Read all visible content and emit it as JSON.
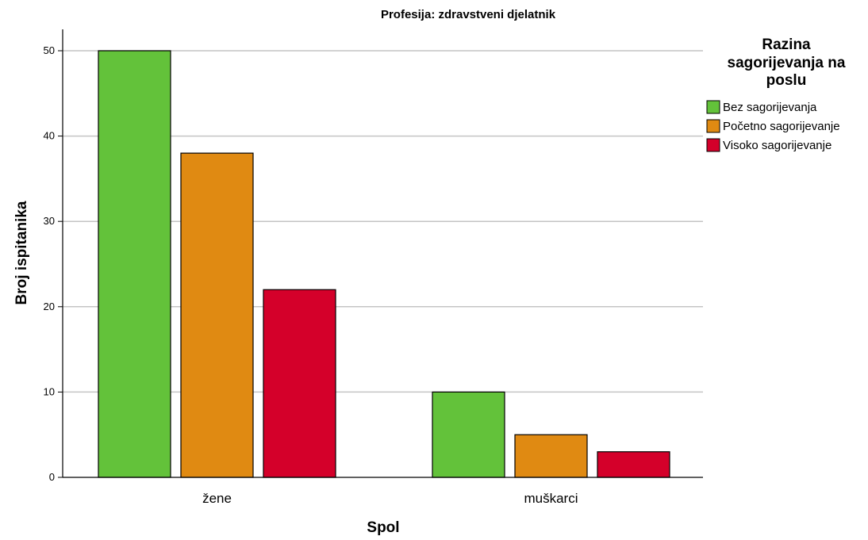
{
  "chart_data": {
    "type": "bar",
    "title": "Profesija: zdravstveni djelatnik",
    "xlabel": "Spol",
    "ylabel": "Broj ispitanika",
    "categories": [
      "žene",
      "muškarci"
    ],
    "series": [
      {
        "name": "Bez sagorijevanja",
        "color": "#63c23a",
        "values": [
          50,
          10
        ]
      },
      {
        "name": "Početno sagorijevanje",
        "color": "#e08a12",
        "values": [
          38,
          5
        ]
      },
      {
        "name": "Visoko sagorijevanje",
        "color": "#d4002a",
        "values": [
          22,
          3
        ]
      }
    ],
    "ylim": [
      0,
      52
    ],
    "yticks": [
      0,
      10,
      20,
      30,
      40,
      50
    ],
    "grid": true,
    "legend": {
      "title_lines": [
        "Razina",
        "sagorijevanja na",
        "poslu"
      ],
      "placement": "right"
    }
  }
}
